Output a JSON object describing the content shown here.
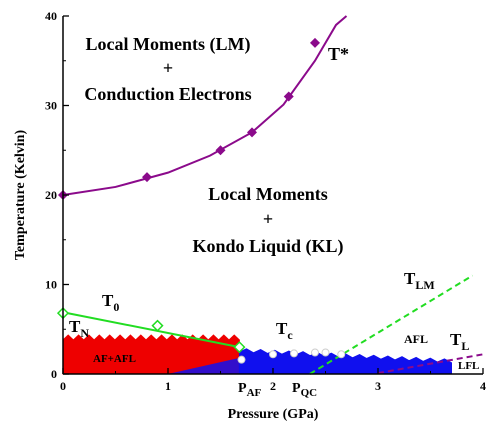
{
  "chart_data": {
    "type": "scatter",
    "xlabel": "Pressure (GPa)",
    "ylabel": "Temperature (Kelvin)",
    "xlim": [
      0,
      4
    ],
    "ylim": [
      0,
      40
    ],
    "xticks": [
      "0",
      "1",
      "2",
      "3",
      "4"
    ],
    "yticks": [
      "0",
      "10",
      "20",
      "30",
      "40"
    ],
    "grid": false,
    "colors": {
      "tstar": "#8b0a8b",
      "t0": "#22dd22",
      "tlm": "#22dd22",
      "tl": "#8b0a8b",
      "af_afl": "#ee0000",
      "afl": "#1010ee",
      "tn_marker": "#ffffff"
    },
    "series": [
      {
        "label": "T*",
        "marker": "diamond",
        "x": [
          0.0,
          0.8,
          1.5,
          1.8,
          2.15,
          2.4
        ],
        "y": [
          20,
          22,
          25,
          27,
          31,
          37
        ],
        "fit_x": [
          0.0,
          0.5,
          1.0,
          1.4,
          1.8,
          2.1,
          2.4,
          2.6,
          2.7
        ],
        "fit_y": [
          20,
          20.9,
          22.5,
          24.4,
          27,
          30.1,
          35,
          39,
          40
        ]
      },
      {
        "label": "T0",
        "marker": "open-diamond",
        "x": [
          0.0,
          0.9,
          1.68
        ],
        "y": [
          6.8,
          5.4,
          3.0
        ],
        "fit_x": [
          0.0,
          1.68
        ],
        "fit_y": [
          6.9,
          3.0
        ]
      },
      {
        "label": "TLM",
        "style": "dashed",
        "x": [
          2.35,
          3.9
        ],
        "y": [
          0,
          11
        ]
      },
      {
        "label": "TL",
        "style": "dashed",
        "x": [
          3.0,
          4.0
        ],
        "y": [
          0.1,
          2.2
        ]
      },
      {
        "label": "TN",
        "marker": "open-circle",
        "x": [
          1.7,
          2.0,
          2.2,
          2.4,
          2.5,
          2.65
        ],
        "y": [
          1.6,
          2.2,
          2.3,
          2.4,
          2.4,
          2.2
        ]
      }
    ],
    "regions": [
      {
        "label": "AF+AFL",
        "x_range": [
          0,
          1.68
        ],
        "y_top": 4.0
      },
      {
        "label": "AFL",
        "x_range": [
          1.68,
          3.7
        ],
        "y_top": 2.6
      }
    ],
    "annotations": {
      "lm_ce_line1": "Local Moments (LM)",
      "lm_ce_line2": "+",
      "lm_ce_line3": "Conduction Electrons",
      "lm_kl_line1": "Local Moments",
      "lm_kl_line2": "+",
      "lm_kl_line3": "Kondo Liquid (KL)",
      "tstar": "T*",
      "t0_main": "T",
      "t0_sub": "0",
      "tlm_main": "T",
      "tlm_sub": "LM",
      "tn_main": "T",
      "tn_sub": "N",
      "tc_main": "T",
      "tc_sub": "c",
      "tl_main": "T",
      "tl_sub": "L",
      "paf_main": "P",
      "paf_sub": "AF",
      "pqc_main": "P",
      "pqc_sub": "QC",
      "af_afl": "AF+AFL",
      "afl": "AFL",
      "lfl": "LFL"
    }
  }
}
